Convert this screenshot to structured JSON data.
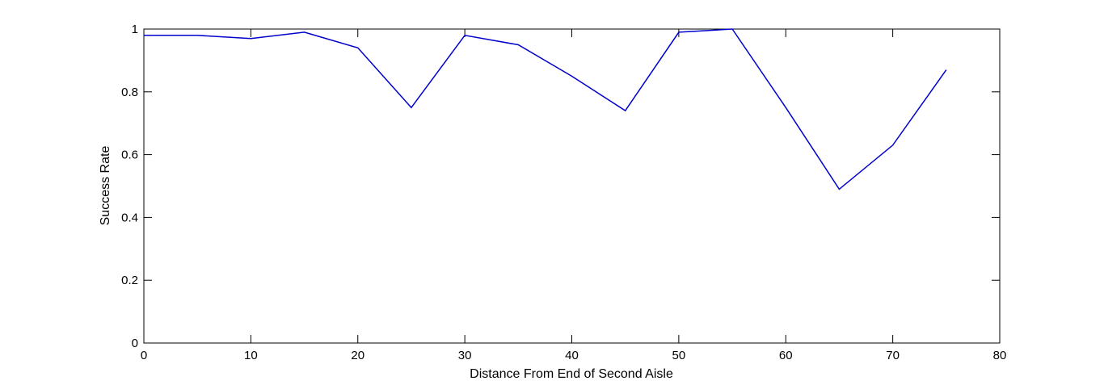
{
  "chart_data": {
    "type": "line",
    "title": "",
    "xlabel": "Distance From End of Second Aisle",
    "ylabel": "Success Rate",
    "xlim": [
      0,
      80
    ],
    "ylim": [
      0,
      1
    ],
    "xticks": [
      0,
      10,
      20,
      30,
      40,
      50,
      60,
      70,
      80
    ],
    "xtick_labels": [
      "0",
      "10",
      "20",
      "30",
      "40",
      "50",
      "60",
      "70",
      "80"
    ],
    "yticks": [
      0,
      0.2,
      0.4,
      0.6,
      0.8,
      1
    ],
    "ytick_labels": [
      "0",
      "0.2",
      "0.4",
      "0.6",
      "0.8",
      "1"
    ],
    "grid": false,
    "line_color": "#0000cc",
    "series": [
      {
        "x": [
          0,
          5,
          10,
          15,
          20,
          25,
          30,
          35,
          40,
          45,
          50,
          55,
          60,
          65,
          70,
          75
        ],
        "y": [
          0.98,
          0.98,
          0.97,
          0.99,
          0.94,
          0.75,
          0.98,
          0.95,
          0.85,
          0.74,
          0.99,
          1.0,
          0.75,
          0.49,
          0.63,
          0.87
        ]
      }
    ]
  }
}
